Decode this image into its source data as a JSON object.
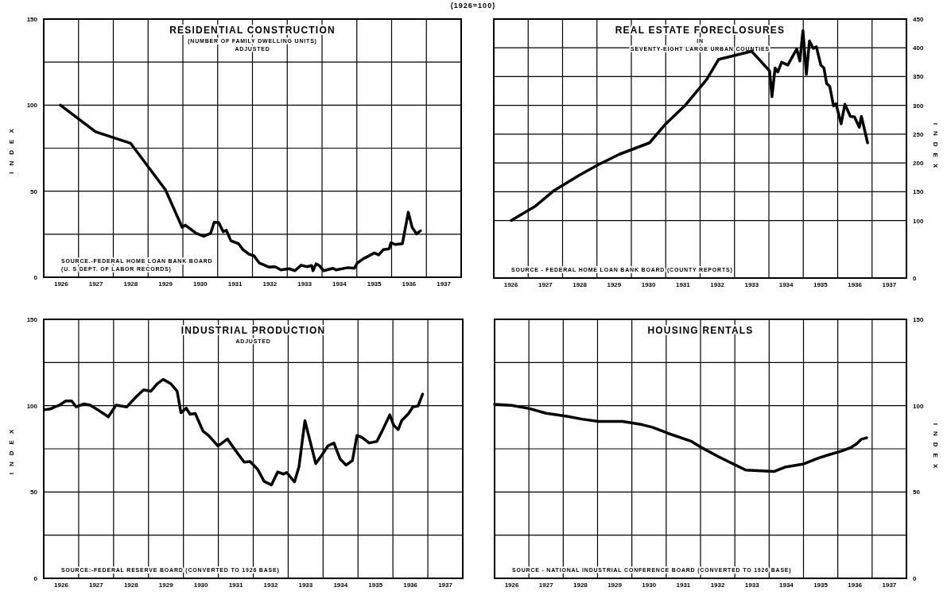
{
  "chart_data": [
    {
      "type": "line",
      "title": "RESIDENTIAL CONSTRUCTION",
      "subtitle": "(NUMBER OF FAMILY DWELLING UNITS)\nADJUSTED",
      "ylabel": "INDEX",
      "annotations": [
        "SOURCE.-FEDERAL HOME LOAN BANK BOARD\n(U. S DEPT. OF LABOR RECORDS)",
        "(1926=100)"
      ],
      "xlim": [
        1926,
        1938
      ],
      "xticks": [
        {
          "value": 1926,
          "label": null
        },
        {
          "value": 1926.5,
          "label": "1926"
        },
        {
          "value": 1927,
          "label": null
        },
        {
          "value": 1927.5,
          "label": "1927"
        },
        {
          "value": 1928,
          "label": null
        },
        {
          "value": 1928.5,
          "label": "1928"
        },
        {
          "value": 1929,
          "label": null
        },
        {
          "value": 1929.5,
          "label": "1929"
        },
        {
          "value": 1930,
          "label": null
        },
        {
          "value": 1930.5,
          "label": "1930"
        },
        {
          "value": 1931,
          "label": null
        },
        {
          "value": 1931.5,
          "label": "1931"
        },
        {
          "value": 1932,
          "label": null
        },
        {
          "value": 1932.5,
          "label": "1932"
        },
        {
          "value": 1933,
          "label": null
        },
        {
          "value": 1933.5,
          "label": "1933"
        },
        {
          "value": 1934,
          "label": null
        },
        {
          "value": 1934.5,
          "label": "1934"
        },
        {
          "value": 1935,
          "label": null
        },
        {
          "value": 1935.5,
          "label": "1935"
        },
        {
          "value": 1936,
          "label": null
        },
        {
          "value": 1936.5,
          "label": "1936"
        },
        {
          "value": 1937,
          "label": null
        },
        {
          "value": 1937.5,
          "label": "1937"
        },
        {
          "value": 1938,
          "label": null
        }
      ],
      "ylim": [
        0,
        150
      ],
      "yticks": [
        0,
        {
          "value": 25,
          "label": null
        },
        50,
        {
          "value": 75,
          "label": null
        },
        100,
        {
          "value": 125,
          "label": null
        },
        150
      ],
      "grid": true,
      "line_style": "solid",
      "series": [
        {
          "color": "#000000",
          "x": [
            1926.48,
            1927.49,
            1928.5,
            1929.5,
            1929.98,
            1930.07,
            1930.38,
            1930.6,
            1930.8,
            1930.9,
            1931.03,
            1931.16,
            1931.25,
            1931.38,
            1931.6,
            1931.73,
            1931.9,
            1932.04,
            1932.2,
            1932.47,
            1932.65,
            1932.82,
            1933.05,
            1933.22,
            1933.4,
            1933.57,
            1933.7,
            1933.74,
            1933.83,
            1933.92,
            1934.05,
            1934.31,
            1934.4,
            1934.75,
            1934.93,
            1935.01,
            1935.19,
            1935.28,
            1935.5,
            1935.63,
            1935.76,
            1935.93,
            1935.98,
            1936.11,
            1936.31,
            1936.48,
            1936.59,
            1936.72,
            1936.83
          ],
          "values": [
            100,
            84.5,
            77.8,
            50.8,
            29,
            30.3,
            25.6,
            23.8,
            25.6,
            32,
            31.7,
            26.4,
            27.3,
            21.2,
            19.5,
            16,
            13.4,
            12.5,
            8.2,
            5.9,
            6.1,
            4.3,
            5,
            3.8,
            7,
            6.1,
            6.8,
            3.8,
            7.8,
            6.8,
            3.8,
            5.2,
            4.3,
            5.6,
            5.2,
            8.2,
            10.8,
            11.7,
            14.1,
            13,
            16,
            16.5,
            20,
            19,
            19.5,
            37.8,
            29,
            25.2,
            27
          ]
        }
      ]
    },
    {
      "type": "line",
      "title": "REAL ESTATE FORECLOSURES",
      "subtitle": "IN\nSEVENTY-EIGHT LARGE URBAN COUNTIES",
      "y2label": "INDEX",
      "annotations": [
        "SOURCE - FEDERAL HOME LOAN BANK BOARD (COUNTY REPORTS)"
      ],
      "xlim": [
        1926,
        1938
      ],
      "xticks": [
        {
          "value": 1926,
          "label": null
        },
        {
          "value": 1926.5,
          "label": "1926"
        },
        {
          "value": 1927,
          "label": null
        },
        {
          "value": 1927.5,
          "label": "1927"
        },
        {
          "value": 1928,
          "label": null
        },
        {
          "value": 1928.5,
          "label": "1928"
        },
        {
          "value": 1929,
          "label": null
        },
        {
          "value": 1929.5,
          "label": "1929"
        },
        {
          "value": 1930,
          "label": null
        },
        {
          "value": 1930.5,
          "label": "1930"
        },
        {
          "value": 1931,
          "label": null
        },
        {
          "value": 1931.5,
          "label": "1931"
        },
        {
          "value": 1932,
          "label": null
        },
        {
          "value": 1932.5,
          "label": "1932"
        },
        {
          "value": 1933,
          "label": null
        },
        {
          "value": 1933.5,
          "label": "1933"
        },
        {
          "value": 1934,
          "label": null
        },
        {
          "value": 1934.5,
          "label": "1934"
        },
        {
          "value": 1935,
          "label": null
        },
        {
          "value": 1935.5,
          "label": "1935"
        },
        {
          "value": 1936,
          "label": null
        },
        {
          "value": 1936.5,
          "label": "1936"
        },
        {
          "value": 1937,
          "label": null
        },
        {
          "value": 1937.5,
          "label": "1937"
        },
        {
          "value": 1938,
          "label": null
        }
      ],
      "y2lim": [
        0,
        450
      ],
      "y2ticks": [
        0,
        100,
        150,
        200,
        250,
        300,
        350,
        400,
        450
      ],
      "grid": true,
      "line_style": "solid",
      "series": [
        {
          "color": "#000000",
          "axis": "y2",
          "x": [
            1926.51,
            1927.21,
            1927.73,
            1928.47,
            1929.04,
            1929.65,
            1930.53,
            1930.97,
            1931.58,
            1932.19,
            1932.54,
            1933.5,
            1934.02,
            1934.09,
            1934.18,
            1934.26,
            1934.37,
            1934.55,
            1934.81,
            1934.9,
            1934.99,
            1935.09,
            1935.18,
            1935.29,
            1935.38,
            1935.51,
            1935.6,
            1935.68,
            1935.77,
            1935.88,
            1935.95,
            1936.1,
            1936.21,
            1936.37,
            1936.49,
            1936.63,
            1936.69,
            1936.87
          ],
          "values": [
            100,
            125,
            151,
            178,
            197,
            215,
            235,
            266,
            301,
            345,
            380,
            394,
            360,
            315,
            365,
            358,
            375,
            370,
            398,
            377,
            430,
            354,
            412,
            399,
            402,
            370,
            365,
            338,
            333,
            299,
            303,
            268,
            302,
            281,
            280,
            262,
            281,
            235
          ]
        }
      ]
    },
    {
      "type": "line",
      "title": "INDUSTRIAL PRODUCTION",
      "subtitle": "ADJUSTED",
      "ylabel": "INDEX",
      "annotations": [
        "SOURCE:-FEDERAL RESERVE BOARD (CONVERTED TO 1926 BASE)"
      ],
      "xlim": [
        1926,
        1938
      ],
      "xticks": [
        {
          "value": 1926,
          "label": null
        },
        {
          "value": 1926.5,
          "label": "1926"
        },
        {
          "value": 1927,
          "label": null
        },
        {
          "value": 1927.5,
          "label": "1927"
        },
        {
          "value": 1928,
          "label": null
        },
        {
          "value": 1928.5,
          "label": "1928"
        },
        {
          "value": 1929,
          "label": null
        },
        {
          "value": 1929.5,
          "label": "1929"
        },
        {
          "value": 1930,
          "label": null
        },
        {
          "value": 1930.5,
          "label": "1930"
        },
        {
          "value": 1931,
          "label": null
        },
        {
          "value": 1931.5,
          "label": "1931"
        },
        {
          "value": 1932,
          "label": null
        },
        {
          "value": 1932.5,
          "label": "1932"
        },
        {
          "value": 1933,
          "label": null
        },
        {
          "value": 1933.5,
          "label": "1933"
        },
        {
          "value": 1934,
          "label": null
        },
        {
          "value": 1934.5,
          "label": "1934"
        },
        {
          "value": 1935,
          "label": null
        },
        {
          "value": 1935.5,
          "label": "1935"
        },
        {
          "value": 1936,
          "label": null
        },
        {
          "value": 1936.5,
          "label": "1936"
        },
        {
          "value": 1937,
          "label": null
        },
        {
          "value": 1937.5,
          "label": "1937"
        },
        {
          "value": 1938,
          "label": null
        }
      ],
      "ylim": [
        0,
        150
      ],
      "yticks": [
        0,
        {
          "value": 25,
          "label": null
        },
        50,
        {
          "value": 75,
          "label": null
        },
        100,
        {
          "value": 125,
          "label": null
        },
        150
      ],
      "grid": true,
      "line_style": "solid",
      "series": [
        {
          "color": "#000000",
          "x": [
            1926.02,
            1926.19,
            1926.32,
            1926.45,
            1926.63,
            1926.8,
            1926.93,
            1927.15,
            1927.33,
            1927.55,
            1927.85,
            1928.07,
            1928.38,
            1928.64,
            1928.86,
            1929.07,
            1929.25,
            1929.42,
            1929.64,
            1929.82,
            1929.93,
            1930.08,
            1930.19,
            1930.34,
            1930.56,
            1930.73,
            1930.99,
            1931.26,
            1931.52,
            1931.74,
            1931.91,
            1932.13,
            1932.31,
            1932.52,
            1932.7,
            1932.87,
            1932.96,
            1933.18,
            1933.31,
            1933.48,
            1933.79,
            1933.97,
            1934.14,
            1934.31,
            1934.49,
            1934.66,
            1934.84,
            1934.97,
            1935.1,
            1935.32,
            1935.54,
            1935.71,
            1935.91,
            1936.02,
            1936.15,
            1936.25,
            1936.45,
            1936.57,
            1936.72,
            1936.85
          ],
          "values": [
            97.6,
            98.1,
            99.3,
            100.3,
            102.7,
            102.7,
            99.3,
            101,
            100.3,
            97.6,
            93.5,
            100.3,
            99.3,
            105,
            109.2,
            108.4,
            112.7,
            115.2,
            112.7,
            108.4,
            95.9,
            98.6,
            95,
            95.5,
            85.3,
            82.5,
            76.7,
            80.7,
            73.3,
            67.3,
            67.6,
            63,
            56.2,
            54.1,
            61.6,
            60.4,
            61.3,
            55.8,
            64.7,
            91.3,
            66.4,
            71.6,
            76.7,
            78.4,
            69,
            65.6,
            68.2,
            82.7,
            81.8,
            78.4,
            79.3,
            86.1,
            94.7,
            88.7,
            86.1,
            91.3,
            95.5,
            99.3,
            99.8,
            106.7
          ]
        }
      ]
    },
    {
      "type": "line",
      "title": "HOUSING RENTALS",
      "y2label": "INDEX",
      "annotations": [
        "SOURCE - NATIONAL INDUSTRIAL CONFERENCE BOARD (CONVERTED TO 1926 BASE)"
      ],
      "xlim": [
        1926,
        1938
      ],
      "xticks": [
        {
          "value": 1926,
          "label": null
        },
        {
          "value": 1926.5,
          "label": "1926"
        },
        {
          "value": 1927,
          "label": null
        },
        {
          "value": 1927.5,
          "label": "1927"
        },
        {
          "value": 1928,
          "label": null
        },
        {
          "value": 1928.5,
          "label": "1928"
        },
        {
          "value": 1929,
          "label": null
        },
        {
          "value": 1929.5,
          "label": "1929"
        },
        {
          "value": 1930,
          "label": null
        },
        {
          "value": 1930.5,
          "label": "1930"
        },
        {
          "value": 1931,
          "label": null
        },
        {
          "value": 1931.5,
          "label": "1931"
        },
        {
          "value": 1932,
          "label": null
        },
        {
          "value": 1932.5,
          "label": "1932"
        },
        {
          "value": 1933,
          "label": null
        },
        {
          "value": 1933.5,
          "label": "1933"
        },
        {
          "value": 1934,
          "label": null
        },
        {
          "value": 1934.5,
          "label": "1934"
        },
        {
          "value": 1935,
          "label": null
        },
        {
          "value": 1935.5,
          "label": "1935"
        },
        {
          "value": 1936,
          "label": null
        },
        {
          "value": 1936.5,
          "label": "1936"
        },
        {
          "value": 1937,
          "label": null
        },
        {
          "value": 1937.5,
          "label": "1937"
        },
        {
          "value": 1938,
          "label": null
        }
      ],
      "y2lim": [
        0,
        150
      ],
      "y2ticks": [
        0,
        {
          "value": 25,
          "label": null
        },
        50,
        {
          "value": 75,
          "label": null
        },
        100,
        {
          "value": 125,
          "label": null
        },
        150
      ],
      "grid": true,
      "line_style": "solid",
      "series": [
        {
          "color": "#000000",
          "axis": "y2",
          "x": [
            1926,
            1926.49,
            1927.02,
            1927.5,
            1928.07,
            1928.55,
            1929.03,
            1929.73,
            1930.3,
            1930.6,
            1931.04,
            1931.74,
            1932.05,
            1932.53,
            1932.97,
            1933.32,
            1933.67,
            1934.15,
            1934.46,
            1934.98,
            1935.42,
            1935.68,
            1936.12,
            1936.38,
            1936.56,
            1936.69,
            1936.84
          ],
          "values": [
            100.8,
            100.2,
            98.3,
            95.6,
            94,
            92.2,
            90.9,
            90.9,
            89,
            87.5,
            84.1,
            79.3,
            75.5,
            70.4,
            66.1,
            62.7,
            62.4,
            61.9,
            64.4,
            66.1,
            69.5,
            71.2,
            73.8,
            75.7,
            78.1,
            80.6,
            81.4
          ]
        }
      ]
    }
  ]
}
